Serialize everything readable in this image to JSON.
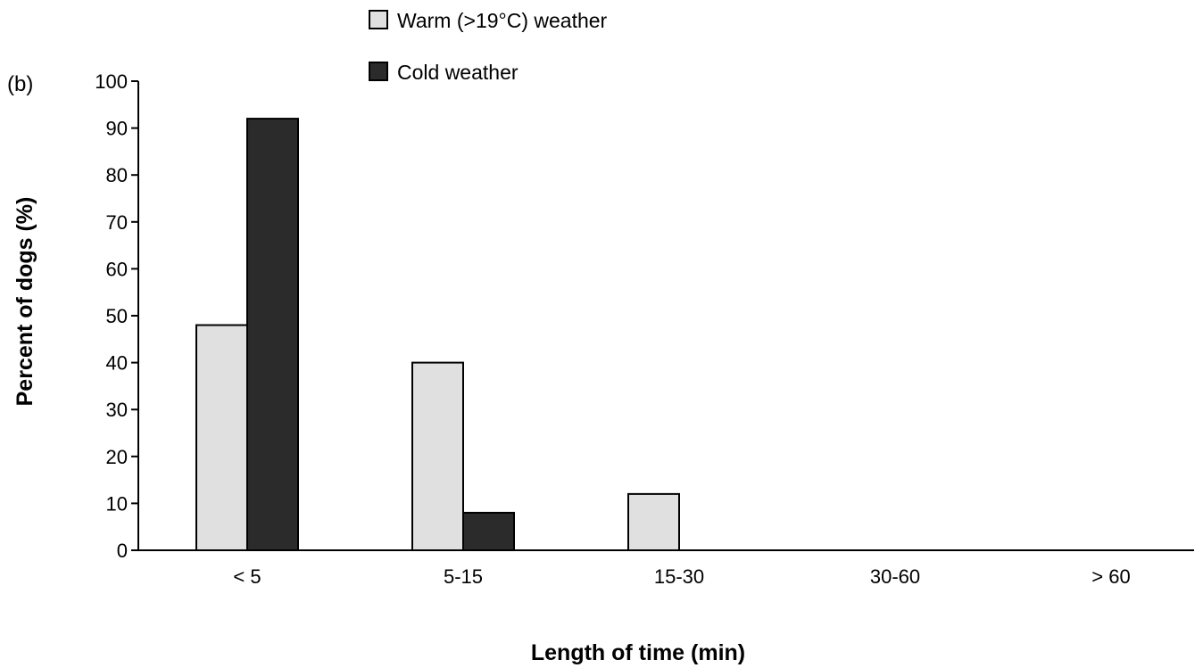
{
  "chart_data": {
    "type": "bar",
    "panel_label": "(b)",
    "xlabel": "Length of time (min)",
    "ylabel": "Percent of dogs (%)",
    "ylim": [
      0,
      100
    ],
    "yticks": [
      0,
      10,
      20,
      30,
      40,
      50,
      60,
      70,
      80,
      90,
      100
    ],
    "categories": [
      "< 5",
      "5-15",
      "15-30",
      "30-60",
      "> 60"
    ],
    "series": [
      {
        "name": "Warm (>19°C) weather",
        "color": "#e0e0e0",
        "values": [
          48,
          40,
          12,
          0,
          0
        ]
      },
      {
        "name": "Cold weather",
        "color": "#2b2b2b",
        "values": [
          92,
          8,
          0,
          0,
          0
        ]
      }
    ],
    "legend_position": "top-center",
    "grid": false
  }
}
